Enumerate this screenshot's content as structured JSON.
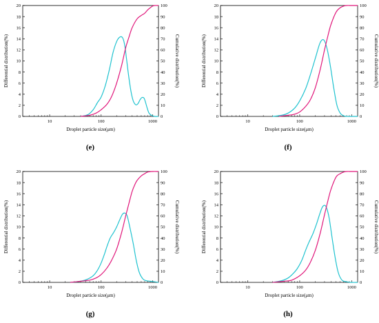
{
  "figure": {
    "panels": [
      "e",
      "f",
      "g",
      "h"
    ],
    "panel_label_format": "({id})"
  },
  "colors": {
    "differential": "#1ec2cf",
    "cumulative": "#e0167a",
    "axis": "#000000"
  },
  "chart_data": [
    {
      "id": "e",
      "label": "(e)",
      "type": "line",
      "xlabel": "Droplet particle size(μm)",
      "ylabel_left": "Differential distribution(%)",
      "ylabel_right": "Cumulative distribution(%)",
      "x_scale": "log",
      "xlim": [
        3,
        1300
      ],
      "xticks": [
        10,
        100,
        1000
      ],
      "xtick_labels": [
        "10",
        "100",
        "1000"
      ],
      "ylim_left": [
        0,
        20
      ],
      "yticks_left": [
        0,
        2,
        4,
        6,
        8,
        10,
        12,
        14,
        16,
        18,
        20
      ],
      "ylim_right": [
        0,
        100
      ],
      "yticks_right": [
        0,
        10,
        20,
        30,
        40,
        50,
        60,
        70,
        80,
        90,
        100
      ],
      "series": [
        {
          "axis": "left",
          "x": [
            40,
            55,
            70,
            85,
            100,
            120,
            145,
            170,
            200,
            230,
            260,
            285,
            310,
            340,
            380,
            420,
            470,
            520,
            570,
            620,
            680,
            730,
            790,
            850,
            950,
            1100,
            1300
          ],
          "y": [
            0,
            0.3,
            1.2,
            2.5,
            3.5,
            5.5,
            8.5,
            11.5,
            13.5,
            14.3,
            14.2,
            13,
            10.5,
            7.5,
            4.5,
            2.8,
            2.1,
            2.3,
            3.0,
            3.4,
            3.3,
            2.5,
            1.4,
            0.6,
            0.2,
            0,
            0
          ]
        },
        {
          "axis": "right",
          "x": [
            40,
            60,
            80,
            100,
            130,
            160,
            200,
            250,
            300,
            350,
            400,
            500,
            600,
            700,
            800,
            900,
            1000,
            1100,
            1300
          ],
          "y": [
            0,
            1,
            3,
            6,
            11,
            18,
            30,
            46,
            62,
            72,
            80,
            88,
            91,
            93,
            96,
            98,
            99.5,
            100,
            100
          ]
        }
      ]
    },
    {
      "id": "f",
      "label": "(f)",
      "type": "line",
      "xlabel": "Droplet particle size(μm)",
      "ylabel_left": "Differential distribution(%)",
      "ylabel_right": "Cumulative distribution(%)",
      "x_scale": "log",
      "xlim": [
        3,
        1300
      ],
      "xticks": [
        10,
        100,
        1000
      ],
      "xtick_labels": [
        "10",
        "100",
        "1000"
      ],
      "ylim_left": [
        0,
        20
      ],
      "yticks_left": [
        0,
        2,
        4,
        6,
        8,
        10,
        12,
        14,
        16,
        18,
        20
      ],
      "ylim_right": [
        0,
        100
      ],
      "yticks_right": [
        0,
        10,
        20,
        30,
        40,
        50,
        60,
        70,
        80,
        90,
        100
      ],
      "series": [
        {
          "axis": "left",
          "x": [
            30,
            45,
            60,
            80,
            100,
            130,
            160,
            200,
            240,
            270,
            300,
            340,
            390,
            450,
            520,
            600,
            700,
            850,
            1000,
            1300
          ],
          "y": [
            0,
            0.2,
            0.6,
            1.5,
            2.8,
            5,
            7.5,
            10.5,
            13,
            13.8,
            13.6,
            12,
            9,
            5.2,
            2,
            0.6,
            0.1,
            0,
            0,
            0
          ]
        },
        {
          "axis": "right",
          "x": [
            40,
            60,
            80,
            100,
            130,
            160,
            200,
            250,
            300,
            350,
            400,
            500,
            600,
            700,
            800,
            1000,
            1300
          ],
          "y": [
            0,
            1,
            2,
            4,
            9,
            15,
            26,
            43,
            60,
            73,
            83,
            94,
            98,
            99.5,
            100,
            100,
            100
          ]
        }
      ]
    },
    {
      "id": "g",
      "label": "(g)",
      "type": "line",
      "xlabel": "Droplet particle size(μm)",
      "ylabel_left": "Differential distribution(%)",
      "ylabel_right": "Cumulative distribution(%)",
      "x_scale": "log",
      "xlim": [
        3,
        1300
      ],
      "xticks": [
        10,
        100,
        1000
      ],
      "xtick_labels": [
        "10",
        "100",
        "1000"
      ],
      "ylim_left": [
        0,
        20
      ],
      "yticks_left": [
        0,
        2,
        4,
        6,
        8,
        10,
        12,
        14,
        16,
        18,
        20
      ],
      "ylim_right": [
        0,
        100
      ],
      "yticks_right": [
        0,
        10,
        20,
        30,
        40,
        50,
        60,
        70,
        80,
        90,
        100
      ],
      "series": [
        {
          "axis": "left",
          "x": [
            25,
            40,
            55,
            70,
            85,
            100,
            115,
            130,
            150,
            175,
            200,
            230,
            260,
            290,
            320,
            360,
            420,
            480,
            550,
            650,
            750,
            900,
            1100,
            1300
          ],
          "y": [
            0,
            0.2,
            0.6,
            1.2,
            2.2,
            3.5,
            5,
            6.5,
            8,
            9,
            10,
            11.3,
            12.3,
            12.5,
            12,
            10,
            7,
            4,
            1.8,
            0.6,
            0.3,
            0.2,
            0.1,
            0
          ]
        },
        {
          "axis": "right",
          "x": [
            25,
            40,
            60,
            80,
            100,
            130,
            160,
            200,
            250,
            300,
            350,
            400,
            450,
            500,
            600,
            700,
            800,
            1000,
            1300
          ],
          "y": [
            0,
            1,
            2,
            4,
            7,
            13,
            20,
            30,
            45,
            60,
            72,
            82,
            88,
            92,
            96,
            98,
            99.5,
            100,
            100
          ]
        }
      ]
    },
    {
      "id": "h",
      "label": "(h)",
      "type": "line",
      "xlabel": "Droplet particle size(μm)",
      "ylabel_left": "Differential distribution(%)",
      "ylabel_right": "Cumulative distribution(%)",
      "x_scale": "log",
      "xlim": [
        3,
        1300
      ],
      "xticks": [
        10,
        100,
        1000
      ],
      "xtick_labels": [
        "10",
        "100",
        "1000"
      ],
      "ylim_left": [
        0,
        20
      ],
      "yticks_left": [
        0,
        2,
        4,
        6,
        8,
        10,
        12,
        14,
        16,
        18,
        20
      ],
      "ylim_right": [
        0,
        100
      ],
      "yticks_right": [
        0,
        10,
        20,
        30,
        40,
        50,
        60,
        70,
        80,
        90,
        100
      ],
      "series": [
        {
          "axis": "left",
          "x": [
            30,
            45,
            60,
            75,
            90,
            110,
            130,
            150,
            180,
            210,
            240,
            270,
            300,
            330,
            370,
            420,
            480,
            550,
            650,
            800,
            1000,
            1300
          ],
          "y": [
            0,
            0.3,
            0.8,
            1.6,
            2.5,
            4,
            5.8,
            7.2,
            8.8,
            10.5,
            12.2,
            13.5,
            13.9,
            13.4,
            11.5,
            8,
            4.5,
            1.8,
            0.4,
            0.1,
            0,
            0
          ]
        },
        {
          "axis": "right",
          "x": [
            30,
            50,
            70,
            100,
            130,
            160,
            200,
            250,
            300,
            350,
            400,
            500,
            600,
            700,
            800,
            1000,
            1300
          ],
          "y": [
            0,
            1,
            2,
            6,
            11,
            18,
            29,
            45,
            61,
            74,
            84,
            95,
            98,
            99.5,
            100,
            100,
            100
          ]
        }
      ]
    }
  ]
}
